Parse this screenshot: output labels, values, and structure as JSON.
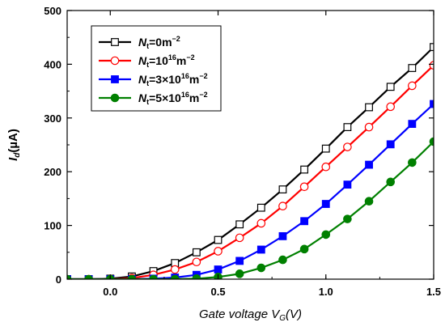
{
  "chart_data": {
    "type": "line",
    "xlabel": "Gate voltage V_G(V)",
    "xlabel_parts": {
      "prefix": "Gate voltage ",
      "var": "V",
      "sub": "G",
      "suffix": "(V)"
    },
    "ylabel": "I_d(µA)",
    "ylabel_parts": {
      "var": "I",
      "sub": "d",
      "suffix": "(µA)"
    },
    "xlim": [
      -0.2,
      1.5
    ],
    "ylim": [
      0,
      500
    ],
    "xticks": [
      0.0,
      0.5,
      1.0,
      1.5
    ],
    "xtick_labels": [
      "0.0",
      "0.5",
      "1.0",
      "1.5"
    ],
    "yticks": [
      0,
      100,
      200,
      300,
      400,
      500
    ],
    "ytick_labels": [
      "0",
      "100",
      "200",
      "300",
      "400",
      "500"
    ],
    "grid": false,
    "legend_position": "top-left",
    "x": [
      -0.2,
      -0.1,
      0.0,
      0.1,
      0.2,
      0.3,
      0.4,
      0.5,
      0.6,
      0.7,
      0.8,
      0.9,
      1.0,
      1.1,
      1.2,
      1.3,
      1.4,
      1.5
    ],
    "series": [
      {
        "name": "N_t=0m⁻²",
        "legend": {
          "var": "N",
          "sub": "t",
          "base": "=0m",
          "exp": "",
          "rest": "",
          "unit_exp": "−2"
        },
        "color": "#000000",
        "marker": "open-square",
        "values": [
          0,
          0,
          1,
          5,
          15,
          30,
          50,
          73,
          102,
          133,
          167,
          204,
          243,
          283,
          320,
          358,
          393,
          432
        ]
      },
      {
        "name": "N_t=10¹⁶m⁻²",
        "legend": {
          "var": "N",
          "sub": "t",
          "base": "=10",
          "exp": "16",
          "rest": "m",
          "unit_exp": "−2"
        },
        "color": "#ff0000",
        "marker": "open-circle",
        "values": [
          0,
          0,
          0,
          2,
          8,
          18,
          32,
          52,
          77,
          104,
          136,
          172,
          209,
          246,
          283,
          321,
          360,
          398
        ]
      },
      {
        "name": "N_t=3×10¹⁶m⁻²",
        "legend": {
          "var": "N",
          "sub": "t",
          "base": "=3×10",
          "exp": "16",
          "rest": "m",
          "unit_exp": "−2"
        },
        "color": "#0000ff",
        "marker": "filled-square",
        "values": [
          0,
          0,
          0,
          0,
          1,
          3,
          8,
          18,
          34,
          55,
          80,
          108,
          140,
          176,
          213,
          251,
          289,
          326
        ]
      },
      {
        "name": "N_t=5×10¹⁶m⁻²",
        "legend": {
          "var": "N",
          "sub": "t",
          "base": "=5×10",
          "exp": "16",
          "rest": "m",
          "unit_exp": "−2"
        },
        "color": "#008000",
        "marker": "filled-circle",
        "values": [
          0,
          0,
          0,
          0,
          0,
          0,
          1,
          4,
          10,
          21,
          36,
          56,
          83,
          112,
          145,
          181,
          217,
          256
        ]
      }
    ]
  }
}
